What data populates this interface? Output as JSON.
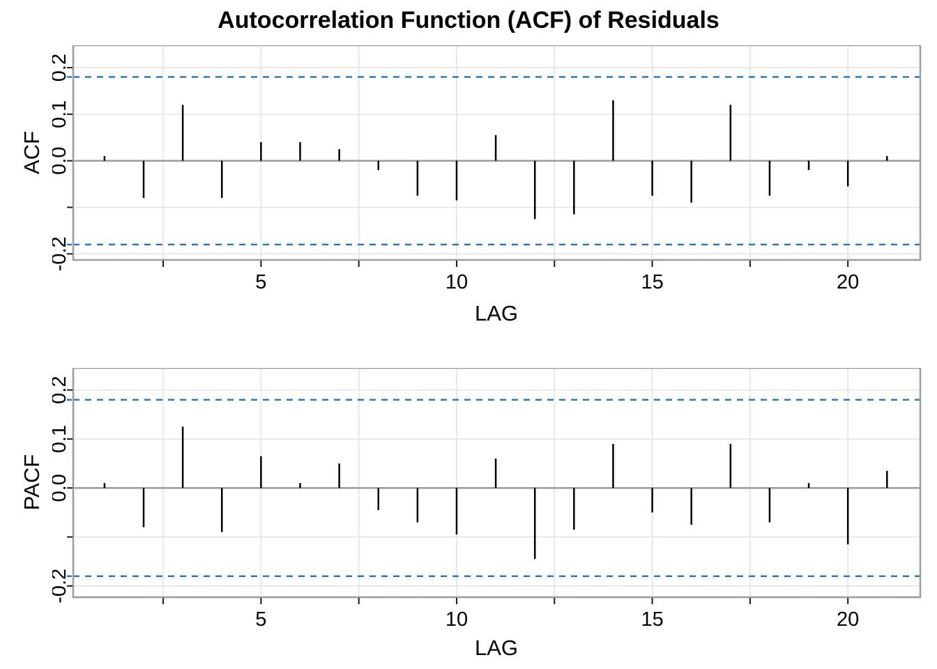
{
  "title": "Autocorrelation Function (ACF) of Residuals",
  "colors": {
    "spike": "#000000",
    "conf_line": "#2273b8",
    "axis_line": "#9b9b9b",
    "gridline": "#e4e4e4",
    "tick": "#1a1a1a",
    "text": "#000000",
    "background": "#ffffff"
  },
  "chart_data": [
    {
      "type": "bar",
      "name": "acf",
      "ylabel": "ACF",
      "xlabel": "LAG",
      "x": [
        1,
        2,
        3,
        4,
        5,
        6,
        7,
        8,
        9,
        10,
        11,
        12,
        13,
        14,
        15,
        16,
        17,
        18,
        19,
        20,
        21
      ],
      "values": [
        0.01,
        -0.08,
        0.12,
        -0.08,
        0.04,
        0.04,
        0.025,
        -0.02,
        -0.075,
        -0.085,
        0.055,
        -0.125,
        -0.115,
        0.13,
        -0.075,
        -0.09,
        0.12,
        -0.075,
        -0.02,
        -0.055,
        0.01
      ],
      "conf_bands": [
        0.18,
        -0.18
      ],
      "xlim": [
        0.2,
        21.85
      ],
      "ylim": [
        -0.213,
        0.248
      ],
      "grid": true,
      "y_ticks": [
        {
          "v": 0.2,
          "label": "0.2"
        },
        {
          "v": 0.1,
          "label": "0.1"
        },
        {
          "v": 0.0,
          "label": "0.0"
        },
        {
          "v": -0.1,
          "label": ""
        },
        {
          "v": -0.2,
          "label": "-0.2"
        }
      ],
      "x_ticks": [
        {
          "v": 2.5,
          "label": ""
        },
        {
          "v": 5,
          "label": "5"
        },
        {
          "v": 7.5,
          "label": ""
        },
        {
          "v": 10,
          "label": "10"
        },
        {
          "v": 12.5,
          "label": ""
        },
        {
          "v": 15,
          "label": "15"
        },
        {
          "v": 17.5,
          "label": ""
        },
        {
          "v": 20,
          "label": "20"
        }
      ]
    },
    {
      "type": "bar",
      "name": "pacf",
      "ylabel": "PACF",
      "xlabel": "LAG",
      "x": [
        1,
        2,
        3,
        4,
        5,
        6,
        7,
        8,
        9,
        10,
        11,
        12,
        13,
        14,
        15,
        16,
        17,
        18,
        19,
        20,
        21
      ],
      "values": [
        0.01,
        -0.08,
        0.125,
        -0.09,
        0.065,
        0.01,
        0.05,
        -0.045,
        -0.07,
        -0.095,
        0.06,
        -0.145,
        -0.085,
        0.09,
        -0.05,
        -0.075,
        0.09,
        -0.07,
        0.01,
        -0.115,
        0.035
      ],
      "conf_bands": [
        0.18,
        -0.18
      ],
      "xlim": [
        0.2,
        21.85
      ],
      "ylim": [
        -0.223,
        0.245
      ],
      "grid": true,
      "y_ticks": [
        {
          "v": 0.2,
          "label": "0.2"
        },
        {
          "v": 0.1,
          "label": "0.1"
        },
        {
          "v": 0.0,
          "label": "0.0"
        },
        {
          "v": -0.1,
          "label": ""
        },
        {
          "v": -0.2,
          "label": "-0.2"
        }
      ],
      "x_ticks": [
        {
          "v": 2.5,
          "label": ""
        },
        {
          "v": 5,
          "label": "5"
        },
        {
          "v": 7.5,
          "label": ""
        },
        {
          "v": 10,
          "label": "10"
        },
        {
          "v": 12.5,
          "label": ""
        },
        {
          "v": 15,
          "label": "15"
        },
        {
          "v": 17.5,
          "label": ""
        },
        {
          "v": 20,
          "label": "20"
        }
      ]
    }
  ]
}
